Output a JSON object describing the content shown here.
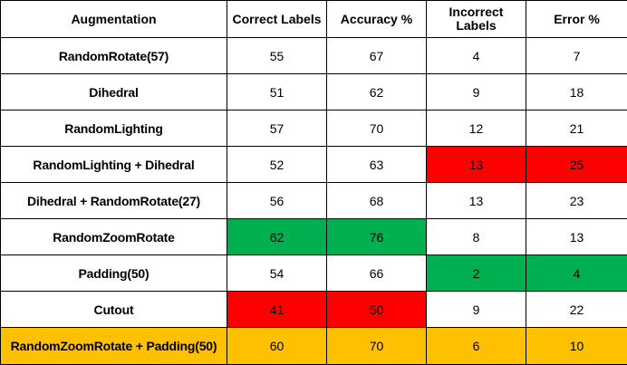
{
  "colors": {
    "red": "#ff0000",
    "green": "#00b050",
    "highlight_row": "#ffc000"
  },
  "table": {
    "headers": [
      "Augmentation",
      "Correct Labels",
      "Accuracy %",
      "Incorrect Labels",
      "Error %"
    ],
    "rows": [
      {
        "augmentation": "RandomRotate(57)",
        "correct": "55",
        "accuracy": "67",
        "incorrect": "4",
        "error": "7"
      },
      {
        "augmentation": "Dihedral",
        "correct": "51",
        "accuracy": "62",
        "incorrect": "9",
        "error": "18"
      },
      {
        "augmentation": "RandomLighting",
        "correct": "57",
        "accuracy": "70",
        "incorrect": "12",
        "error": "21"
      },
      {
        "augmentation": "RandomLighting + Dihedral",
        "correct": "52",
        "accuracy": "63",
        "incorrect": "13",
        "error": "25",
        "highlight": {
          "incorrect": "red",
          "error": "red"
        }
      },
      {
        "augmentation": "Dihedral + RandomRotate(27)",
        "correct": "56",
        "accuracy": "68",
        "incorrect": "13",
        "error": "23"
      },
      {
        "augmentation": "RandomZoomRotate",
        "correct": "62",
        "accuracy": "76",
        "incorrect": "8",
        "error": "13",
        "highlight": {
          "correct": "green",
          "accuracy": "green"
        }
      },
      {
        "augmentation": "Padding(50)",
        "correct": "54",
        "accuracy": "66",
        "incorrect": "2",
        "error": "4",
        "highlight": {
          "incorrect": "green",
          "error": "green"
        }
      },
      {
        "augmentation": "Cutout",
        "correct": "41",
        "accuracy": "50",
        "incorrect": "9",
        "error": "22",
        "highlight": {
          "correct": "red",
          "accuracy": "red"
        }
      },
      {
        "augmentation": "RandomZoomRotate + Padding(50)",
        "correct": "60",
        "accuracy": "70",
        "incorrect": "6",
        "error": "10",
        "row_highlight": "yellow"
      }
    ]
  }
}
